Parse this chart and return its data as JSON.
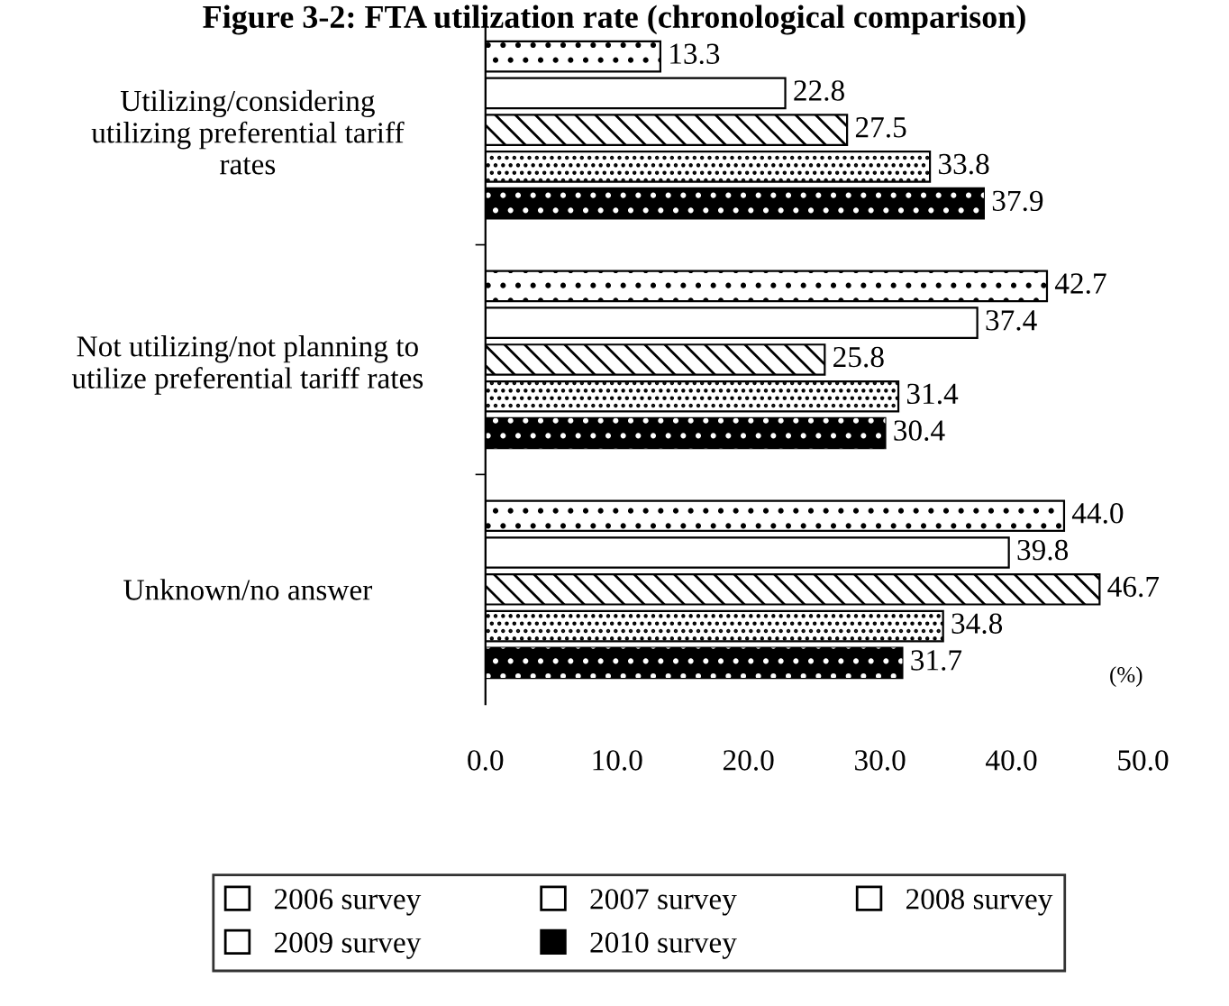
{
  "chart_data": {
    "type": "bar",
    "orientation": "horizontal",
    "title": "Figure 3-2: FTA utilization rate (chronological comparison)",
    "categories": [
      "Utilizing/considering\nutilizing preferential tariff\nrates",
      "Not utilizing/not planning to\nutilize preferential tariff rates",
      "Unknown/no answer"
    ],
    "series": [
      {
        "name": "2006 survey",
        "color": "#ffffff",
        "values": [
          13.3,
          42.7,
          44.0
        ]
      },
      {
        "name": "2007 survey",
        "color": "#ffffff",
        "values": [
          22.8,
          37.4,
          39.8
        ]
      },
      {
        "name": "2008 survey",
        "color": "#ffffff",
        "values": [
          27.5,
          25.8,
          46.7
        ]
      },
      {
        "name": "2009 survey",
        "color": "#ffffff",
        "values": [
          33.8,
          31.4,
          34.8
        ]
      },
      {
        "name": "2010 survey",
        "color": "#000000",
        "values": [
          37.9,
          30.4,
          31.7
        ]
      }
    ],
    "value_labels": [
      [
        "13.3",
        "42.7",
        "44.0"
      ],
      [
        "22.8",
        "37.4",
        "39.8"
      ],
      [
        "27.5",
        "25.8",
        "46.7"
      ],
      [
        "33.8",
        "31.4",
        "34.8"
      ],
      [
        "37.9",
        "30.4",
        "31.7"
      ]
    ],
    "xlim": [
      0,
      50
    ],
    "xticks": [
      {
        "value": 0,
        "label": "0.0"
      },
      {
        "value": 10,
        "label": "10.0"
      },
      {
        "value": 20,
        "label": "20.0"
      },
      {
        "value": 30,
        "label": "30.0"
      },
      {
        "value": 40,
        "label": "40.0"
      },
      {
        "value": 50,
        "label": "50.0"
      }
    ],
    "annotations": [
      "(%)"
    ],
    "legend": "bottom",
    "grid": false
  }
}
